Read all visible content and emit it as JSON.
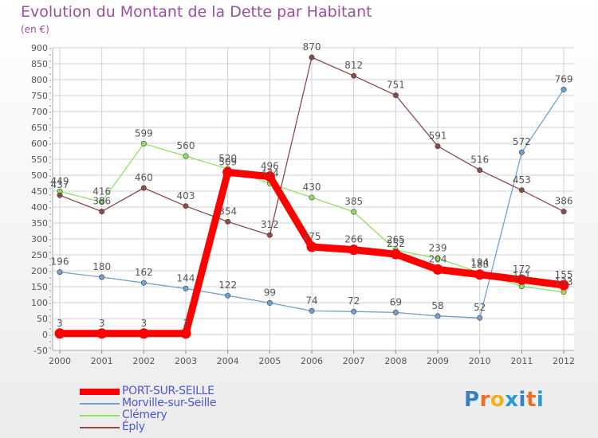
{
  "chart_data": {
    "type": "line",
    "title": "Evolution du Montant de la Dette par Habitant",
    "unit": "(en €)",
    "x": [
      "2000",
      "2001",
      "2002",
      "2003",
      "2004",
      "2005",
      "2006",
      "2007",
      "2008",
      "2009",
      "2010",
      "2011",
      "2012"
    ],
    "ylim": [
      -50,
      900
    ],
    "yticks": [
      -50,
      0,
      50,
      100,
      150,
      200,
      250,
      300,
      350,
      400,
      450,
      500,
      550,
      600,
      650,
      700,
      750,
      800,
      850,
      900
    ],
    "grid": true,
    "legend_position": "bottom-left",
    "series": [
      {
        "name": "PORT-SUR-SEILLE",
        "color": "#ff0000",
        "values": [
          3,
          3,
          3,
          3,
          509,
          496,
          275,
          266,
          252,
          204,
          188,
          172,
          155
        ],
        "labels": [
          "3",
          "3",
          "3",
          "3",
          "509",
          "496",
          "275",
          "266",
          "252",
          "204",
          "188",
          "172",
          "155"
        ]
      },
      {
        "name": "Morville-sur-Seille",
        "color": "#6fa0d0",
        "values": [
          196,
          180,
          162,
          144,
          122,
          99,
          74,
          72,
          69,
          58,
          52,
          572,
          769
        ],
        "labels": [
          "196",
          "180",
          "162",
          "144",
          "122",
          "99",
          "74",
          "72",
          "69",
          "58",
          "52",
          "572",
          "769"
        ]
      },
      {
        "name": "Clémery",
        "color": "#90e060",
        "values": [
          449,
          416,
          599,
          560,
          520,
          474,
          430,
          385,
          265,
          239,
          194,
          151,
          133
        ],
        "labels": [
          "449",
          "416",
          "599",
          "560",
          "520",
          "474",
          "430",
          "385",
          "265",
          "239",
          "194",
          "151",
          "133"
        ]
      },
      {
        "name": "Éply",
        "color": "#8c4a4a",
        "values": [
          437,
          386,
          460,
          403,
          354,
          312,
          870,
          812,
          751,
          591,
          516,
          453,
          386
        ],
        "labels": [
          "437",
          "386",
          "460",
          "403",
          "354",
          "312",
          "870",
          "812",
          "751",
          "591",
          "516",
          "453",
          "386"
        ]
      }
    ]
  },
  "logo": {
    "text": "Proxiti",
    "letter_colors": [
      "#3a7ec8",
      "#e8702a",
      "#f0b020",
      "#2a9ad0",
      "#3a7ec8",
      "#e8702a",
      "#2a9ad0"
    ]
  }
}
